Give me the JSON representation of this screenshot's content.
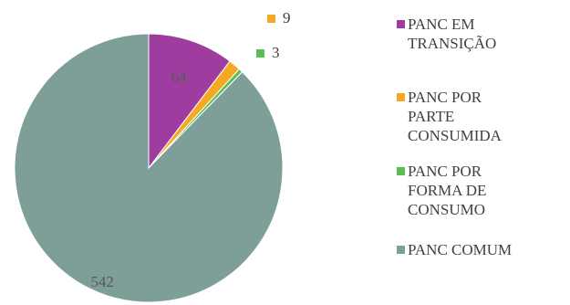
{
  "chart_data": {
    "type": "pie",
    "title": "",
    "categories": [
      "PANC EM TRANSIÇÃO",
      "PANC POR PARTE CONSUMIDA",
      "PANC POR FORMA DE CONSUMO",
      "PANC COMUM"
    ],
    "values": [
      64,
      9,
      3,
      542
    ],
    "colors": [
      "#9E3C9F",
      "#F7A823",
      "#5BBE55",
      "#7E9F98"
    ],
    "data_labels": [
      "64",
      "9",
      "3",
      "542"
    ],
    "legend": {
      "placement": "right",
      "entries": [
        "PANC EM TRANSIÇÃO",
        "PANC POR PARTE CONSUMIDA",
        "PANC POR FORMA DE CONSUMO",
        "PANC COMUM"
      ]
    },
    "start_angle_deg": 0,
    "direction": "clockwise"
  }
}
